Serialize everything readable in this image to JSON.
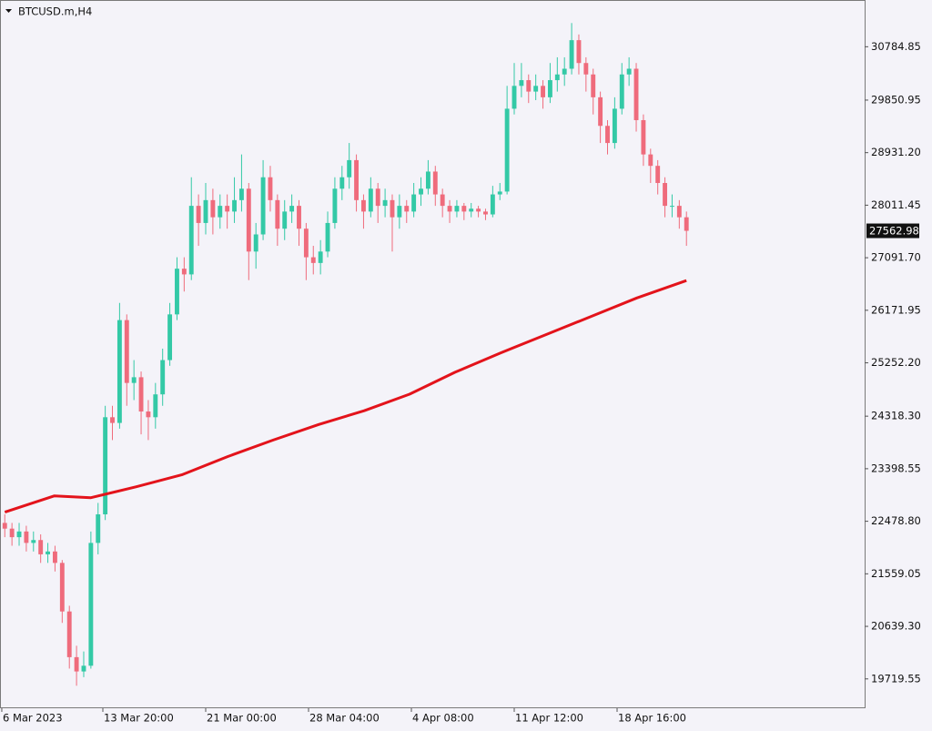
{
  "chart_data": {
    "type": "candlestick",
    "title": "BTCUSD.m,H4",
    "x": [
      24,
      36,
      48,
      60,
      72,
      84,
      96,
      108,
      120,
      132,
      144,
      156,
      168,
      180,
      192,
      204,
      216,
      228,
      240,
      252,
      264,
      276,
      288,
      300,
      312,
      324,
      336,
      348,
      360,
      372,
      384,
      396,
      408,
      420,
      432,
      444,
      456,
      468,
      480,
      492,
      504,
      516,
      528,
      540,
      552,
      564,
      576,
      588,
      600,
      612,
      624,
      636,
      648,
      660,
      672,
      684,
      696,
      708,
      720,
      732,
      744,
      756,
      768,
      780,
      792,
      804,
      816,
      828,
      840,
      852,
      864,
      876,
      888,
      900,
      912,
      924,
      936,
      948,
      960,
      972,
      984,
      996,
      1008,
      1020,
      1032,
      1044,
      1056,
      1068,
      1080,
      1092,
      1104,
      1116,
      1128,
      1140,
      1152,
      1164
    ],
    "open": [
      22450,
      22350,
      22200,
      22300,
      22100,
      22150,
      21900,
      21950,
      21750,
      20900,
      20100,
      19850,
      19950,
      22100,
      22600,
      24300,
      24200,
      26000,
      24900,
      25000,
      24400,
      24300,
      24700,
      25300,
      26100,
      26900,
      26800,
      28000,
      27700,
      28100,
      27800,
      28000,
      27900,
      28100,
      28300,
      27200,
      27500,
      28500,
      28100,
      27600,
      27900,
      28000,
      27600,
      27100,
      27000,
      27200,
      27700,
      28300,
      28500,
      28800,
      28100,
      27900,
      28300,
      28000,
      28100,
      27800,
      28000,
      27900,
      28200,
      28300,
      28600,
      28200,
      28000,
      27900,
      28000,
      27900,
      27950,
      27900,
      27850,
      28200,
      28250,
      29700,
      30100,
      30200,
      30000,
      30100,
      29900,
      30200,
      30300,
      30400,
      30900,
      30500,
      30300,
      29900,
      29400,
      29100,
      29700,
      30300,
      30400,
      29500,
      28900,
      28700,
      28400,
      28000,
      28000,
      27800
    ],
    "high": [
      22600,
      22450,
      22450,
      22400,
      22300,
      22250,
      22100,
      22050,
      21800,
      21000,
      20300,
      20200,
      22300,
      22800,
      24500,
      24500,
      26300,
      26100,
      25300,
      25100,
      24600,
      24900,
      25500,
      26300,
      27100,
      27100,
      28500,
      28200,
      28400,
      28300,
      28200,
      28200,
      28500,
      28900,
      28400,
      27700,
      28800,
      28700,
      28200,
      28100,
      28200,
      28100,
      27700,
      27300,
      27400,
      27900,
      28500,
      28700,
      29100,
      28900,
      28200,
      28500,
      28400,
      28300,
      28200,
      28200,
      28100,
      28400,
      28500,
      28800,
      28700,
      28300,
      28100,
      28100,
      28050,
      28050,
      28000,
      27950,
      28350,
      28400,
      30100,
      30500,
      30500,
      30300,
      30300,
      30200,
      30500,
      30600,
      30600,
      31200,
      31000,
      30600,
      30400,
      30000,
      29500,
      29900,
      30500,
      30600,
      30500,
      29600,
      29000,
      28800,
      28500,
      28200,
      28100,
      27900
    ],
    "low": [
      22200,
      22050,
      22050,
      21950,
      21950,
      21750,
      21750,
      21600,
      20700,
      19900,
      19600,
      19750,
      19900,
      21900,
      22500,
      23900,
      24100,
      24500,
      24600,
      24000,
      23900,
      24100,
      24500,
      25200,
      26000,
      26500,
      26700,
      27300,
      27500,
      27500,
      27600,
      27600,
      27700,
      27900,
      26700,
      26900,
      27400,
      27900,
      27300,
      27400,
      27700,
      27300,
      26700,
      26800,
      26800,
      27100,
      27600,
      28100,
      28300,
      27900,
      27600,
      27800,
      27700,
      27800,
      27200,
      27600,
      27700,
      27800,
      28000,
      28200,
      28000,
      27800,
      27700,
      27800,
      27750,
      27800,
      27800,
      27750,
      27800,
      28100,
      28200,
      29600,
      29900,
      29800,
      29850,
      29700,
      29800,
      30000,
      30100,
      30300,
      30300,
      30000,
      29600,
      29100,
      28900,
      29000,
      29600,
      30100,
      29300,
      28700,
      28400,
      28200,
      27800,
      27800,
      27600,
      27300
    ],
    "close": [
      22350,
      22200,
      22300,
      22100,
      22150,
      21900,
      21950,
      21750,
      20900,
      20100,
      19850,
      19950,
      22100,
      22600,
      24300,
      24200,
      26000,
      24900,
      25000,
      24400,
      24300,
      24700,
      25300,
      26100,
      26900,
      26800,
      28000,
      27700,
      28100,
      27800,
      28000,
      27900,
      28100,
      28300,
      27200,
      27500,
      28500,
      28100,
      27600,
      27900,
      28000,
      27600,
      27100,
      27000,
      27200,
      27700,
      28300,
      28500,
      28800,
      28100,
      27900,
      28300,
      28000,
      28100,
      27800,
      28000,
      27900,
      28200,
      28300,
      28600,
      28200,
      28000,
      27900,
      28000,
      27900,
      27950,
      27900,
      27850,
      28200,
      28250,
      29700,
      30100,
      30200,
      30000,
      30100,
      29900,
      30200,
      30300,
      30400,
      30900,
      30500,
      30300,
      29900,
      29400,
      29100,
      29700,
      30300,
      30400,
      29500,
      28900,
      28700,
      28400,
      28000,
      28000,
      27800,
      27562.98
    ],
    "up_color": "#33c9a6",
    "down_color": "#ef6b7c",
    "moving_average": {
      "color": "#e3131b",
      "x": [
        24,
        107,
        168,
        244,
        320,
        397,
        473,
        549,
        625,
        701,
        777,
        853,
        929,
        1005,
        1081,
        1164
      ],
      "values": [
        22638,
        22923,
        22891,
        23083,
        23291,
        23612,
        23901,
        24173,
        24414,
        24703,
        25088,
        25425,
        25746,
        26066,
        26387,
        26692
      ]
    },
    "xlim": [
      16,
      1462
    ],
    "xticks": [
      {
        "value": 19,
        "label": "6 Mar 2023"
      },
      {
        "value": 188,
        "label": "13 Mar 20:00"
      },
      {
        "value": 360,
        "label": "21 Mar 00:00"
      },
      {
        "value": 532,
        "label": "28 Mar 04:00"
      },
      {
        "value": 704,
        "label": "4 Apr 08:00"
      },
      {
        "value": 876,
        "label": "11 Apr 12:00"
      },
      {
        "value": 1048,
        "label": "18 Apr 16:00"
      }
    ],
    "ylim": [
      19206,
      31603
    ],
    "yticks": [
      19719.55,
      {
        "value": 20639.3,
        "label": "20639.30"
      },
      21559.05,
      {
        "value": 22478.8,
        "label": "22478.80"
      },
      23398.55,
      {
        "value": 24318.3,
        "label": "24318.30"
      },
      {
        "value": 25252.2,
        "label": "25252.20"
      },
      26171.95,
      {
        "value": 27091.7,
        "label": "27091.70"
      },
      28011.45,
      {
        "value": 28931.2,
        "label": "28931.20"
      },
      29850.95,
      30784.85
    ]
  }
}
